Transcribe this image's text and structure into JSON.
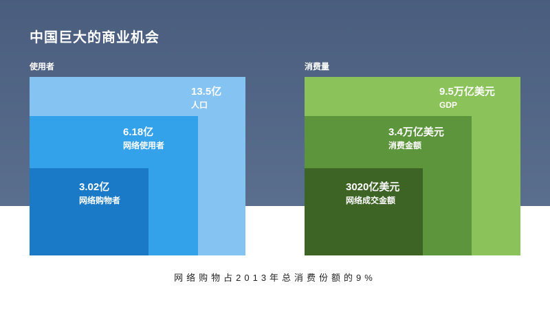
{
  "title": "中国巨大的商业机会",
  "footer": "网络购物占2013年总消费份额的9%",
  "colors": {
    "header_band": "#4a5d7e",
    "blue_light": "#85c3f3",
    "blue_mid": "#34a1eb",
    "blue_dark": "#1b7ac8",
    "green_light": "#8bc25a",
    "green_mid": "#5c953c",
    "green_dark": "#3d6325"
  },
  "users": {
    "label": "使用者",
    "items": [
      {
        "value": "13.5亿",
        "label": "人口"
      },
      {
        "value": "6.18亿",
        "label": "网络使用者"
      },
      {
        "value": "3.02亿",
        "label": "网络购物者"
      }
    ]
  },
  "consumption": {
    "label": "消费量",
    "items": [
      {
        "value": "9.5万亿美元",
        "label": "GDP"
      },
      {
        "value": "3.4万亿美元",
        "label": "消费金额"
      },
      {
        "value": "3020亿美元",
        "label": "网络成交金额"
      }
    ]
  }
}
